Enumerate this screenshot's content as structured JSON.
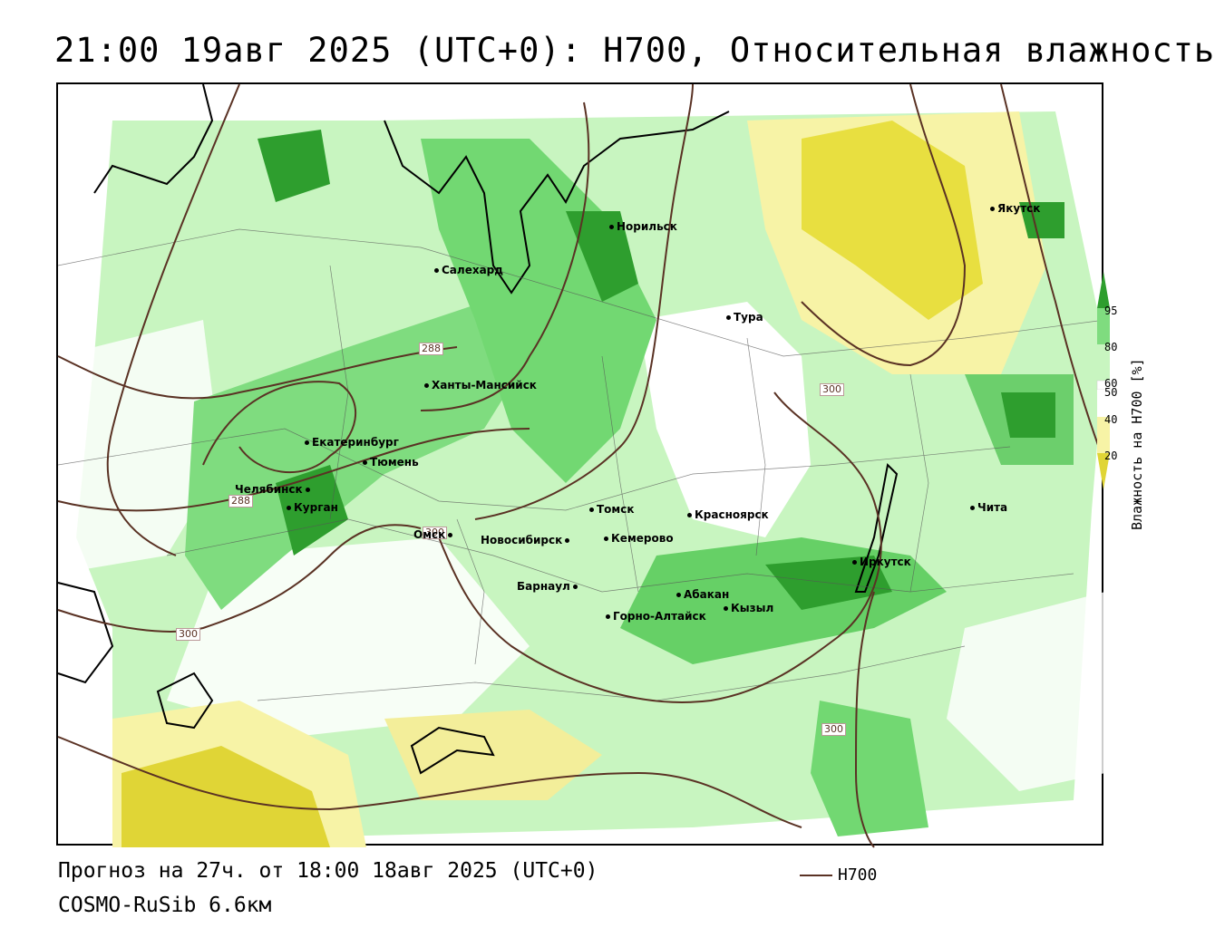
{
  "title": "21:00 19авг 2025 (UTC+0): H700, Относительная влажность",
  "footer": {
    "forecast": "Прогноз на 27ч. от 18:00 18авг 2025 (UTC+0)",
    "model": "COSMO-RuSib 6.6км",
    "legend_line": "H700"
  },
  "colorbar": {
    "title": "Влажность на H700 [%]",
    "ticks": [
      "95",
      "80",
      "60",
      "50",
      "40",
      "20"
    ]
  },
  "isolines": [
    "288",
    "288",
    "300",
    "300",
    "300",
    "300"
  ],
  "cities": [
    {
      "name": "Норильск"
    },
    {
      "name": "Якутск"
    },
    {
      "name": "Салехард"
    },
    {
      "name": "Тура"
    },
    {
      "name": "Ханты-Мансийск"
    },
    {
      "name": "Екатеринбург"
    },
    {
      "name": "Тюмень"
    },
    {
      "name": "Челябинск"
    },
    {
      "name": "Курган"
    },
    {
      "name": "Омск"
    },
    {
      "name": "Томск"
    },
    {
      "name": "Красноярск"
    },
    {
      "name": "Новосибирск"
    },
    {
      "name": "Кемерово"
    },
    {
      "name": "Барнаул"
    },
    {
      "name": "Абакан"
    },
    {
      "name": "Иркутск"
    },
    {
      "name": "Чита"
    },
    {
      "name": "Кызыл"
    },
    {
      "name": "Горно-Алтайск"
    }
  ]
}
